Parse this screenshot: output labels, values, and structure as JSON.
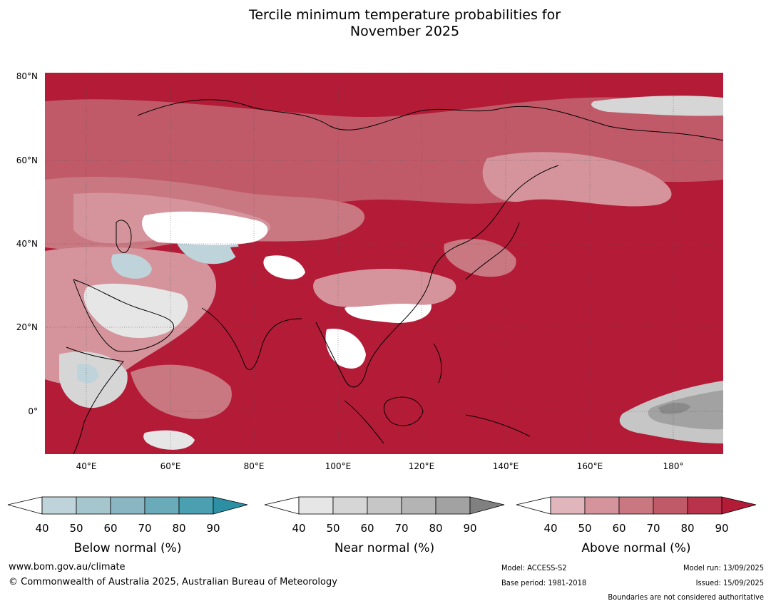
{
  "title_line1": "Tercile minimum temperature probabilities for",
  "title_line2": "November 2025",
  "map": {
    "lat_labels": [
      "80°N",
      "60°N",
      "40°N",
      "20°N",
      "0°"
    ],
    "lon_labels": [
      "40°E",
      "60°E",
      "80°E",
      "100°E",
      "120°E",
      "140°E",
      "160°E",
      "180°"
    ],
    "land_outline_color": "#000000",
    "border_color": "#808080",
    "grid_color": "#555555"
  },
  "colorbars": [
    {
      "label": "Below normal (%)",
      "ticks": [
        "40",
        "50",
        "60",
        "70",
        "80",
        "90"
      ],
      "colors": [
        "#ffffff",
        "#bfd3da",
        "#a6c6cd",
        "#8ab6c1",
        "#6aabb9",
        "#4a9fb0",
        "#2c8fa3"
      ]
    },
    {
      "label": "Near normal (%)",
      "ticks": [
        "40",
        "50",
        "60",
        "70",
        "80",
        "90"
      ],
      "colors": [
        "#ffffff",
        "#e6e6e6",
        "#d6d6d6",
        "#c6c6c6",
        "#b4b4b4",
        "#a2a2a2",
        "#808080"
      ]
    },
    {
      "label": "Above normal (%)",
      "ticks": [
        "40",
        "50",
        "60",
        "70",
        "80",
        "90"
      ],
      "colors": [
        "#ffffff",
        "#e0b6bc",
        "#d5949c",
        "#c97882",
        "#c05a69",
        "#b9334a",
        "#b31b37"
      ]
    }
  ],
  "footer": {
    "website": "www.bom.gov.au/climate",
    "copyright": "© Commonwealth of Australia 2025, Australian Bureau of Meteorology",
    "model": "Model: ACCESS-S2",
    "base_period": "Base period: 1981-2018",
    "model_run": "Model run: 13/09/2025",
    "issued": "Issued: 15/09/2025",
    "boundaries": "Boundaries are not considered authoritative"
  }
}
